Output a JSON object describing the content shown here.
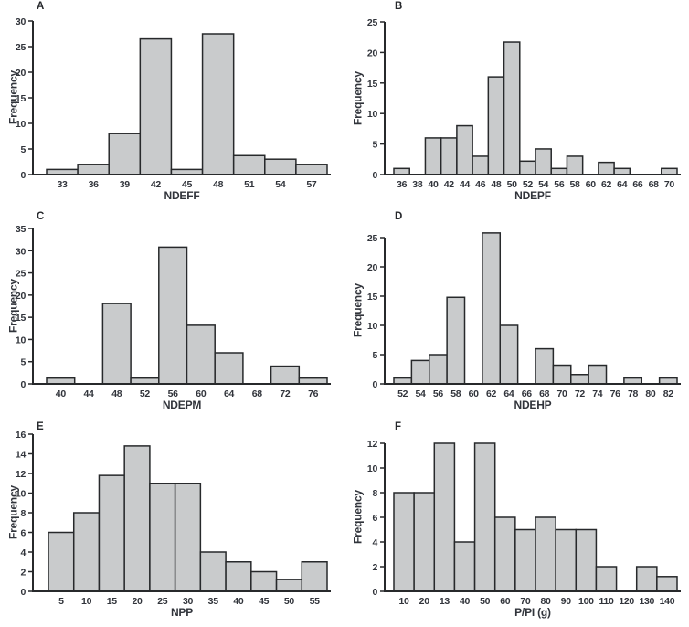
{
  "figure": {
    "background": "#ffffff"
  },
  "styles": {
    "bar_fill": "#c9cbcc",
    "bar_stroke": "#27292b",
    "axis_color": "#27292b",
    "text_color": "#31343b"
  },
  "chart_data": [
    {
      "panel_label": "A",
      "type": "bar",
      "title": "",
      "xlabel": "NDEFF",
      "ylabel": "Frequency",
      "categories": [
        "33",
        "36",
        "39",
        "42",
        "45",
        "48",
        "51",
        "54",
        "57"
      ],
      "values": [
        1,
        2,
        8,
        26.5,
        1,
        27.5,
        3.7,
        3,
        2
      ],
      "ylim": [
        0,
        30
      ],
      "yticks": [
        0,
        5,
        10,
        15,
        20,
        25,
        30
      ],
      "grid": false,
      "legend": "none"
    },
    {
      "panel_label": "B",
      "type": "bar",
      "title": "",
      "xlabel": "NDEPF",
      "ylabel": "Frequency",
      "categories": [
        "36",
        "38",
        "40",
        "42",
        "44",
        "46",
        "48",
        "50",
        "52",
        "54",
        "56",
        "58",
        "60",
        "62",
        "64",
        "66",
        "68",
        "70"
      ],
      "values": [
        1,
        0,
        6,
        6,
        8,
        3,
        16,
        21.7,
        2.2,
        4.2,
        1,
        3,
        0,
        2,
        1,
        0,
        0,
        1
      ],
      "ylim": [
        0,
        25
      ],
      "yticks": [
        0,
        5,
        10,
        15,
        20,
        25
      ],
      "grid": false,
      "legend": "none"
    },
    {
      "panel_label": "C",
      "type": "bar",
      "title": "",
      "xlabel": "NDEPM",
      "ylabel": "Frequency",
      "categories": [
        "40",
        "44",
        "48",
        "52",
        "56",
        "60",
        "64",
        "68",
        "72",
        "76"
      ],
      "values": [
        1.3,
        0,
        18.1,
        1.3,
        30.8,
        13.2,
        7,
        0,
        4,
        1.3
      ],
      "ylim": [
        0,
        35
      ],
      "yticks": [
        0,
        5,
        10,
        15,
        20,
        25,
        30,
        35
      ],
      "grid": false,
      "legend": "none"
    },
    {
      "panel_label": "D",
      "type": "bar",
      "title": "",
      "xlabel": "NDEHP",
      "ylabel": "Frequency",
      "categories": [
        "52",
        "54",
        "56",
        "58",
        "60",
        "62",
        "64",
        "66",
        "68",
        "70",
        "72",
        "74",
        "76",
        "78",
        "80",
        "82"
      ],
      "values": [
        1,
        4,
        5,
        14.8,
        0,
        25.8,
        10,
        0,
        6,
        3.2,
        1.6,
        3.2,
        0,
        1,
        0,
        1
      ],
      "ylim": [
        0,
        25
      ],
      "yticks": [
        0,
        5,
        10,
        15,
        20,
        25
      ],
      "grid": false,
      "legend": "none"
    },
    {
      "panel_label": "E",
      "type": "bar",
      "title": "",
      "xlabel": "NPP",
      "ylabel": "Frequency",
      "categories": [
        "5",
        "10",
        "15",
        "20",
        "25",
        "30",
        "35",
        "40",
        "45",
        "50",
        "55"
      ],
      "values": [
        6,
        8,
        11.8,
        14.8,
        11,
        11,
        4,
        3,
        2,
        1.2,
        3
      ],
      "ylim": [
        0,
        16
      ],
      "yticks": [
        0,
        2,
        4,
        6,
        8,
        10,
        12,
        14,
        16
      ],
      "grid": false,
      "legend": "none"
    },
    {
      "panel_label": "F",
      "type": "bar",
      "title": "",
      "xlabel": "P/PI (g)",
      "ylabel": "Frequency",
      "categories": [
        "10",
        "20",
        "13",
        "40",
        "50",
        "60",
        "70",
        "80",
        "90",
        "100",
        "110",
        "120",
        "130",
        "140"
      ],
      "values": [
        8,
        8,
        12,
        4,
        12,
        6,
        5,
        6,
        5,
        5,
        2,
        0,
        2,
        1.2
      ],
      "ylim": [
        0,
        12
      ],
      "yticks": [
        0,
        2,
        4,
        6,
        8,
        10,
        12
      ],
      "grid": false,
      "legend": "none"
    }
  ]
}
